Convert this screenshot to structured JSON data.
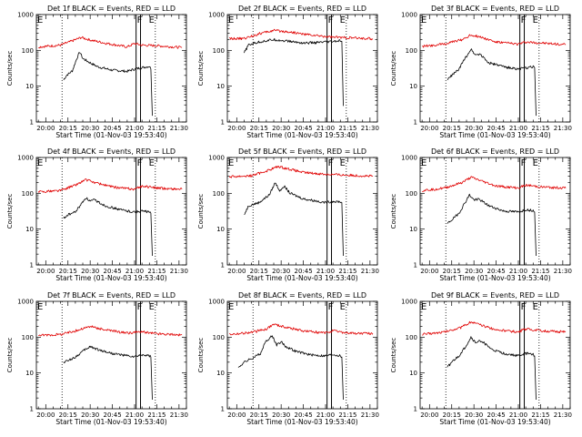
{
  "colors": {
    "events": "#000000",
    "lld": "#e00000"
  },
  "chart_data": [
    {
      "type": "line",
      "det": "1f",
      "title": "Det 1f BLACK = Events, RED = LLD",
      "xlabel": "Start Time (01-Nov-03 19:53:40)",
      "ylabel": "Counts/sec",
      "xlim": [
        "19:53:40",
        "21:35:00"
      ],
      "ylim": [
        1,
        1000
      ],
      "yscale": "log",
      "xticks": [
        "20:00",
        "20:15",
        "20:30",
        "20:45",
        "21:00",
        "21:15",
        "21:30"
      ],
      "yticks": [
        "1",
        "10",
        "100",
        "1000"
      ],
      "markers": [
        {
          "label": "E",
          "time": "19:53:40"
        },
        {
          "label": "F",
          "time": "21:01:00"
        },
        {
          "label": "E",
          "time": "21:09:00"
        }
      ],
      "dotted_times": [
        "20:11:00",
        "21:14:00"
      ],
      "solid_times": [
        "21:01:00",
        "21:04:00"
      ],
      "series": [
        {
          "name": "Events",
          "x": [
            "20:12",
            "20:14",
            "20:18",
            "20:21",
            "20:23",
            "20:25",
            "20:28",
            "20:30",
            "20:35",
            "20:45",
            "20:55",
            "21:00",
            "21:05",
            "21:10",
            "21:11",
            "21:12"
          ],
          "y": [
            15,
            20,
            27,
            60,
            90,
            60,
            50,
            45,
            35,
            28,
            26,
            30,
            33,
            36,
            30,
            1.5
          ]
        },
        {
          "name": "LLD",
          "x": [
            "19:55",
            "20:10",
            "20:18",
            "20:24",
            "20:30",
            "20:40",
            "20:55",
            "21:00",
            "21:05",
            "21:15",
            "21:32"
          ],
          "y": [
            125,
            140,
            185,
            230,
            195,
            160,
            125,
            155,
            140,
            135,
            120
          ]
        }
      ]
    },
    {
      "type": "line",
      "det": "2f",
      "title": "Det 2f BLACK = Events, RED = LLD",
      "xlabel": "Start Time (01-Nov-03 19:53:40)",
      "ylabel": "Counts/sec",
      "xlim": [
        "19:53:40",
        "21:35:00"
      ],
      "ylim": [
        1,
        1000
      ],
      "yscale": "log",
      "xticks": [
        "20:00",
        "20:15",
        "20:30",
        "20:45",
        "21:00",
        "21:15",
        "21:30"
      ],
      "yticks": [
        "1",
        "10",
        "100",
        "1000"
      ],
      "markers": [
        {
          "label": "E",
          "time": "19:53:40"
        },
        {
          "label": "F",
          "time": "21:01:00"
        },
        {
          "label": "E",
          "time": "21:09:00"
        }
      ],
      "dotted_times": [
        "20:11:00",
        "21:14:00"
      ],
      "solid_times": [
        "21:01:00",
        "21:04:00"
      ],
      "series": [
        {
          "name": "Events",
          "x": [
            "20:05",
            "20:08",
            "20:12",
            "20:18",
            "20:25",
            "20:35",
            "20:45",
            "20:55",
            "21:05",
            "21:10",
            "21:11",
            "21:12"
          ],
          "y": [
            85,
            140,
            160,
            180,
            200,
            180,
            160,
            165,
            175,
            185,
            180,
            2.8
          ]
        },
        {
          "name": "LLD",
          "x": [
            "19:55",
            "20:05",
            "20:15",
            "20:25",
            "20:35",
            "20:45",
            "20:55",
            "21:05",
            "21:15",
            "21:32"
          ],
          "y": [
            210,
            215,
            290,
            360,
            330,
            285,
            255,
            235,
            225,
            210
          ]
        }
      ]
    },
    {
      "type": "line",
      "det": "3f",
      "title": "Det 3f BLACK = Events, RED = LLD",
      "xlabel": "Start Time (01-Nov-03 19:53:40)",
      "ylabel": "Counts/sec",
      "xlim": [
        "19:53:40",
        "21:35:00"
      ],
      "ylim": [
        1,
        1000
      ],
      "yscale": "log",
      "xticks": [
        "20:00",
        "20:15",
        "20:30",
        "20:45",
        "21:00",
        "21:15",
        "21:30"
      ],
      "yticks": [
        "1",
        "10",
        "100",
        "1000"
      ],
      "markers": [
        {
          "label": "E",
          "time": "19:53:40"
        },
        {
          "label": "F",
          "time": "21:01:00"
        },
        {
          "label": "E",
          "time": "21:09:00"
        }
      ],
      "dotted_times": [
        "20:11:00",
        "21:14:00"
      ],
      "solid_times": [
        "21:01:00",
        "21:04:00"
      ],
      "series": [
        {
          "name": "Events",
          "x": [
            "20:12",
            "20:15",
            "20:20",
            "20:24",
            "20:26",
            "20:28",
            "20:31",
            "20:34",
            "20:40",
            "20:50",
            "21:00",
            "21:05",
            "21:10",
            "21:11",
            "21:12"
          ],
          "y": [
            15,
            20,
            30,
            60,
            80,
            110,
            75,
            80,
            45,
            35,
            30,
            32,
            35,
            33,
            1.5
          ]
        },
        {
          "name": "LLD",
          "x": [
            "19:55",
            "20:10",
            "20:22",
            "20:28",
            "20:34",
            "20:45",
            "21:00",
            "21:05",
            "21:15",
            "21:32"
          ],
          "y": [
            130,
            150,
            200,
            270,
            240,
            170,
            150,
            170,
            160,
            145
          ]
        }
      ]
    },
    {
      "type": "line",
      "det": "4f",
      "title": "Det 4f BLACK = Events, RED = LLD",
      "xlabel": "Start Time (01-Nov-03 19:53:40)",
      "ylabel": "Counts/sec",
      "xlim": [
        "19:53:40",
        "21:35:00"
      ],
      "ylim": [
        1,
        1000
      ],
      "yscale": "log",
      "xticks": [
        "20:00",
        "20:15",
        "20:30",
        "20:45",
        "21:00",
        "21:15",
        "21:30"
      ],
      "yticks": [
        "1",
        "10",
        "100",
        "1000"
      ],
      "markers": [
        {
          "label": "E",
          "time": "19:53:40"
        },
        {
          "label": "F",
          "time": "21:01:00"
        },
        {
          "label": "E",
          "time": "21:09:00"
        }
      ],
      "dotted_times": [
        "20:11:00",
        "21:14:00"
      ],
      "solid_times": [
        "21:01:00",
        "21:04:00"
      ],
      "series": [
        {
          "name": "Events",
          "x": [
            "20:12",
            "20:15",
            "20:20",
            "20:24",
            "20:27",
            "20:30",
            "20:33",
            "20:40",
            "20:50",
            "21:00",
            "21:05",
            "21:10",
            "21:11",
            "21:12"
          ],
          "y": [
            20,
            25,
            30,
            50,
            75,
            60,
            65,
            45,
            35,
            30,
            32,
            30,
            28,
            1.8
          ]
        },
        {
          "name": "LLD",
          "x": [
            "19:55",
            "20:10",
            "20:20",
            "20:27",
            "20:33",
            "20:45",
            "21:00",
            "21:05",
            "21:15",
            "21:32"
          ],
          "y": [
            110,
            120,
            170,
            240,
            200,
            150,
            130,
            160,
            140,
            130
          ]
        }
      ]
    },
    {
      "type": "line",
      "det": "5f",
      "title": "Det 5f BLACK = Events, RED = LLD",
      "xlabel": "Start Time (01-Nov-03 19:53:40)",
      "ylabel": "Counts/sec",
      "xlim": [
        "19:53:40",
        "21:35:00"
      ],
      "ylim": [
        1,
        1000
      ],
      "yscale": "log",
      "xticks": [
        "20:00",
        "20:15",
        "20:30",
        "20:45",
        "21:00",
        "21:15",
        "21:30"
      ],
      "yticks": [
        "1",
        "10",
        "100",
        "1000"
      ],
      "markers": [
        {
          "label": "E",
          "time": "19:53:40"
        },
        {
          "label": "F",
          "time": "21:01:00"
        },
        {
          "label": "E",
          "time": "21:09:00"
        }
      ],
      "dotted_times": [
        "20:11:00",
        "21:14:00"
      ],
      "solid_times": [
        "21:01:00",
        "21:04:00"
      ],
      "series": [
        {
          "name": "Events",
          "x": [
            "20:05",
            "20:08",
            "20:15",
            "20:22",
            "20:26",
            "20:29",
            "20:32",
            "20:36",
            "20:45",
            "20:55",
            "21:00",
            "21:05",
            "21:10",
            "21:11",
            "21:12"
          ],
          "y": [
            25,
            45,
            55,
            90,
            200,
            120,
            160,
            100,
            70,
            60,
            55,
            60,
            58,
            55,
            1.8
          ]
        },
        {
          "name": "LLD",
          "x": [
            "19:55",
            "20:10",
            "20:20",
            "20:28",
            "20:35",
            "20:45",
            "21:00",
            "21:15",
            "21:32"
          ],
          "y": [
            290,
            310,
            420,
            560,
            480,
            380,
            340,
            320,
            300
          ]
        }
      ]
    },
    {
      "type": "line",
      "det": "6f",
      "title": "Det 6f BLACK = Events, RED = LLD",
      "xlabel": "Start Time (01-Nov-03 19:53:40)",
      "ylabel": "Counts/sec",
      "xlim": [
        "19:53:40",
        "21:35:00"
      ],
      "ylim": [
        1,
        1000
      ],
      "yscale": "log",
      "xticks": [
        "20:00",
        "20:15",
        "20:30",
        "20:45",
        "21:00",
        "21:15",
        "21:30"
      ],
      "yticks": [
        "1",
        "10",
        "100",
        "1000"
      ],
      "markers": [
        {
          "label": "E",
          "time": "19:53:40"
        },
        {
          "label": "F",
          "time": "21:01:00"
        },
        {
          "label": "E",
          "time": "21:09:00"
        }
      ],
      "dotted_times": [
        "20:11:00",
        "21:14:00"
      ],
      "solid_times": [
        "21:01:00",
        "21:04:00"
      ],
      "series": [
        {
          "name": "Events",
          "x": [
            "20:12",
            "20:15",
            "20:20",
            "20:24",
            "20:27",
            "20:30",
            "20:33",
            "20:40",
            "20:50",
            "21:00",
            "21:05",
            "21:10",
            "21:11",
            "21:12"
          ],
          "y": [
            14,
            18,
            28,
            55,
            90,
            65,
            70,
            45,
            32,
            30,
            35,
            33,
            30,
            1.8
          ]
        },
        {
          "name": "LLD",
          "x": [
            "19:55",
            "20:10",
            "20:22",
            "20:28",
            "20:34",
            "20:45",
            "21:00",
            "21:05",
            "21:15",
            "21:32"
          ],
          "y": [
            120,
            140,
            200,
            280,
            230,
            160,
            140,
            170,
            150,
            140
          ]
        }
      ]
    },
    {
      "type": "line",
      "det": "7f",
      "title": "Det 7f BLACK = Events, RED = LLD",
      "xlabel": "Start Time (01-Nov-03 19:53:40)",
      "ylabel": "Counts/sec",
      "xlim": [
        "19:53:40",
        "21:35:00"
      ],
      "ylim": [
        1,
        1000
      ],
      "yscale": "log",
      "xticks": [
        "20:00",
        "20:15",
        "20:30",
        "20:45",
        "21:00",
        "21:15",
        "21:30"
      ],
      "yticks": [
        "1",
        "10",
        "100",
        "1000"
      ],
      "markers": [
        {
          "label": "E",
          "time": "19:53:40"
        },
        {
          "label": "F",
          "time": "21:01:00"
        },
        {
          "label": "E",
          "time": "21:09:00"
        }
      ],
      "dotted_times": [
        "20:11:00",
        "21:14:00"
      ],
      "solid_times": [
        "21:01:00",
        "21:04:00"
      ],
      "series": [
        {
          "name": "Events",
          "x": [
            "20:12",
            "20:15",
            "20:20",
            "20:25",
            "20:30",
            "20:35",
            "20:45",
            "20:55",
            "21:00",
            "21:05",
            "21:10",
            "21:11",
            "21:12"
          ],
          "y": [
            20,
            22,
            28,
            40,
            55,
            45,
            35,
            30,
            28,
            32,
            30,
            28,
            1.8
          ]
        },
        {
          "name": "LLD",
          "x": [
            "19:55",
            "20:10",
            "20:20",
            "20:30",
            "20:40",
            "20:55",
            "21:05",
            "21:15",
            "21:32"
          ],
          "y": [
            110,
            120,
            150,
            200,
            160,
            130,
            140,
            125,
            115
          ]
        }
      ]
    },
    {
      "type": "line",
      "det": "8f",
      "title": "Det 8f BLACK = Events, RED = LLD",
      "xlabel": "Start Time (01-Nov-03 19:53:40)",
      "ylabel": "Counts/sec",
      "xlim": [
        "19:53:40",
        "21:35:00"
      ],
      "ylim": [
        1,
        1000
      ],
      "yscale": "log",
      "xticks": [
        "20:00",
        "20:15",
        "20:30",
        "20:45",
        "21:00",
        "21:15",
        "21:30"
      ],
      "yticks": [
        "1",
        "10",
        "100",
        "1000"
      ],
      "markers": [
        {
          "label": "E",
          "time": "19:53:40"
        },
        {
          "label": "F",
          "time": "21:01:00"
        },
        {
          "label": "E",
          "time": "21:09:00"
        }
      ],
      "dotted_times": [
        "20:11:00",
        "21:14:00"
      ],
      "solid_times": [
        "21:01:00",
        "21:04:00"
      ],
      "series": [
        {
          "name": "Events",
          "x": [
            "20:01",
            "20:05",
            "20:10",
            "20:16",
            "20:20",
            "20:24",
            "20:27",
            "20:30",
            "20:33",
            "20:40",
            "20:50",
            "21:00",
            "21:05",
            "21:10",
            "21:11",
            "21:12"
          ],
          "y": [
            14,
            20,
            25,
            35,
            80,
            110,
            60,
            75,
            55,
            40,
            32,
            30,
            33,
            30,
            28,
            1.8
          ]
        },
        {
          "name": "LLD",
          "x": [
            "19:55",
            "20:10",
            "20:20",
            "20:25",
            "20:33",
            "20:45",
            "21:00",
            "21:05",
            "21:15",
            "21:32"
          ],
          "y": [
            120,
            135,
            170,
            230,
            190,
            150,
            130,
            150,
            130,
            125
          ]
        }
      ]
    },
    {
      "type": "line",
      "det": "9f",
      "title": "Det 9f BLACK = Events, RED = LLD",
      "xlabel": "Start Time (01-Nov-03 19:53:40)",
      "ylabel": "Counts/sec",
      "xlim": [
        "19:53:40",
        "21:35:00"
      ],
      "ylim": [
        1,
        1000
      ],
      "yscale": "log",
      "xticks": [
        "20:00",
        "20:15",
        "20:30",
        "20:45",
        "21:00",
        "21:15",
        "21:30"
      ],
      "yticks": [
        "1",
        "10",
        "100",
        "1000"
      ],
      "markers": [
        {
          "label": "E",
          "time": "19:53:40"
        },
        {
          "label": "F",
          "time": "21:01:00"
        },
        {
          "label": "E",
          "time": "21:09:00"
        }
      ],
      "dotted_times": [
        "20:11:00",
        "21:14:00"
      ],
      "solid_times": [
        "21:01:00",
        "21:04:00"
      ],
      "series": [
        {
          "name": "Events",
          "x": [
            "20:12",
            "20:15",
            "20:20",
            "20:25",
            "20:28",
            "20:31",
            "20:35",
            "20:42",
            "20:50",
            "21:00",
            "21:05",
            "21:10",
            "21:11",
            "21:12"
          ],
          "y": [
            14,
            20,
            30,
            60,
            100,
            70,
            80,
            45,
            35,
            30,
            35,
            33,
            30,
            1.8
          ]
        },
        {
          "name": "LLD",
          "x": [
            "19:55",
            "20:10",
            "20:22",
            "20:28",
            "20:34",
            "20:45",
            "21:00",
            "21:05",
            "21:15",
            "21:32"
          ],
          "y": [
            120,
            140,
            190,
            270,
            220,
            160,
            140,
            170,
            150,
            140
          ]
        }
      ]
    }
  ]
}
